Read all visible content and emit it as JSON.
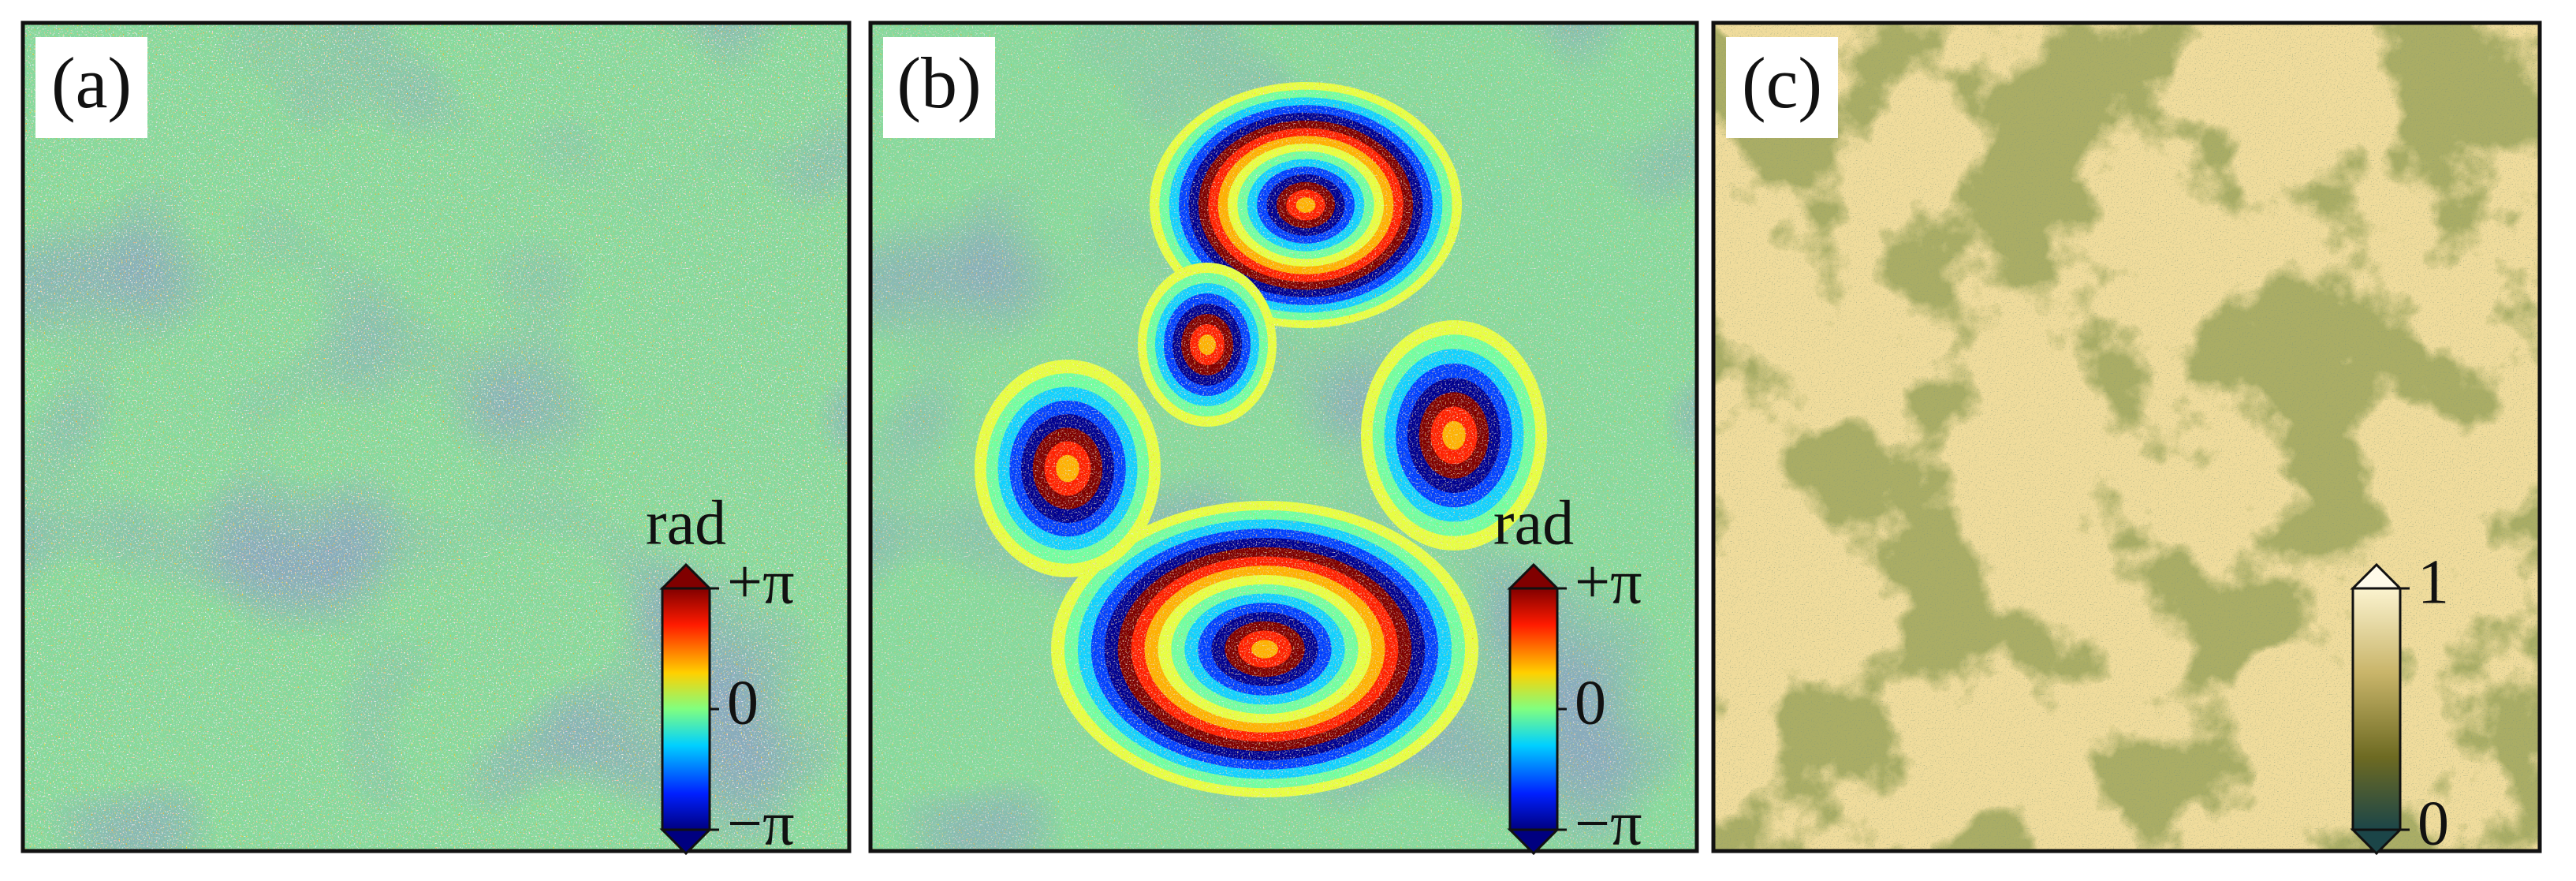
{
  "panels": [
    {
      "label": "(a)",
      "colorbar": {
        "unit": "rad",
        "ticks": [
          "+π",
          "0",
          "−π"
        ]
      }
    },
    {
      "label": "(b)",
      "colorbar": {
        "unit": "rad",
        "ticks": [
          "+π",
          "0",
          "−π"
        ]
      }
    },
    {
      "label": "(c)",
      "colorbar": {
        "ticks": [
          "1",
          "0"
        ]
      }
    }
  ]
}
